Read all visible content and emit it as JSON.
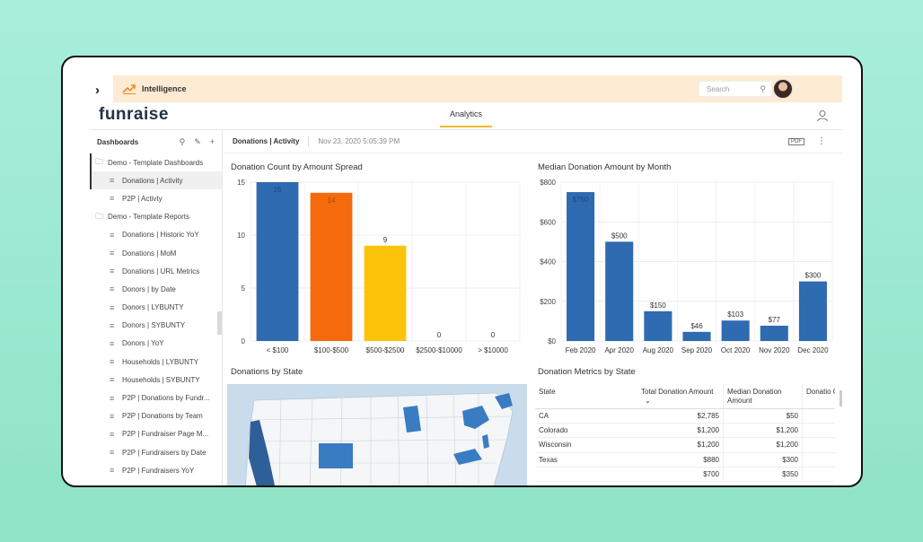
{
  "topbar": {
    "app_name": "Intelligence",
    "search_placeholder": "Search"
  },
  "logo": "funraise",
  "nav": {
    "tab": "Analytics"
  },
  "sidebar": {
    "title": "Dashboards",
    "items": [
      {
        "label": "Demo - Template Dashboards",
        "type": "folder"
      },
      {
        "label": "Donations | Activity",
        "type": "leaf",
        "active": true
      },
      {
        "label": "P2P | Activty",
        "type": "leaf"
      },
      {
        "label": "Demo - Template Reports",
        "type": "folder"
      },
      {
        "label": "Donations | Historic YoY",
        "type": "leaf"
      },
      {
        "label": "Donations | MoM",
        "type": "leaf"
      },
      {
        "label": "Donations | URL Metrics",
        "type": "leaf"
      },
      {
        "label": "Donors | by Date",
        "type": "leaf"
      },
      {
        "label": "Donors | LYBUNTY",
        "type": "leaf"
      },
      {
        "label": "Donors | SYBUNTY",
        "type": "leaf"
      },
      {
        "label": "Donors | YoY",
        "type": "leaf"
      },
      {
        "label": "Households | LYBUNTY",
        "type": "leaf"
      },
      {
        "label": "Households | SYBUNTY",
        "type": "leaf"
      },
      {
        "label": "P2P | Donations by Fundr...",
        "type": "leaf"
      },
      {
        "label": "P2P | Donations by Team",
        "type": "leaf"
      },
      {
        "label": "P2P | Fundraiser Page M...",
        "type": "leaf"
      },
      {
        "label": "P2P | Fundraisers by Date",
        "type": "leaf"
      },
      {
        "label": "P2P | Fundraisers YoY",
        "type": "leaf"
      }
    ]
  },
  "content": {
    "title": "Donations | Activity",
    "timestamp": "Nov 23, 2020 5:05:39 PM",
    "pdf_label": "PDF"
  },
  "widgets": {
    "map_title": "Donations by State",
    "table_title": "Donation Metrics by State"
  },
  "chart_data": [
    {
      "type": "bar",
      "title": "Donation Count by Amount Spread",
      "categories": [
        "< $100",
        "$100-$500",
        "$500-$2500",
        "$2500-$10000",
        "> $10000"
      ],
      "values": [
        15,
        14,
        9,
        0,
        0
      ],
      "value_labels": [
        "15",
        "14",
        "9",
        "0",
        "0"
      ],
      "colors": [
        "#2e6bb0",
        "#f56a0c",
        "#fcc30b",
        "#2e6bb0",
        "#2e6bb0"
      ],
      "ylim": [
        0,
        15
      ],
      "yticks": [
        "0",
        "5",
        "10",
        "15"
      ],
      "grid": true
    },
    {
      "type": "bar",
      "title": "Median Donation Amount by Month",
      "categories": [
        "Feb 2020",
        "Apr 2020",
        "Aug 2020",
        "Sep 2020",
        "Oct 2020",
        "Nov 2020",
        "Dec 2020"
      ],
      "values": [
        750,
        500,
        150,
        46,
        103,
        77,
        300
      ],
      "value_labels": [
        "$750",
        "$500",
        "$150",
        "$46",
        "$103",
        "$77",
        "$300"
      ],
      "colors": [
        "#2e6bb0"
      ],
      "ylim": [
        0,
        800
      ],
      "yticks": [
        "$0",
        "$200",
        "$400",
        "$600",
        "$800"
      ],
      "grid": true
    }
  ],
  "table": {
    "headers": [
      "State",
      "Total Donation Amount",
      "Median Donation Amount",
      "Donatio Count"
    ],
    "rows": [
      [
        "CA",
        "$2,785",
        "$50",
        ""
      ],
      [
        "Colorado",
        "$1,200",
        "$1,200",
        ""
      ],
      [
        "Wisconsin",
        "$1,200",
        "$1,200",
        ""
      ],
      [
        "Texas",
        "$880",
        "$300",
        ""
      ],
      [
        "",
        "$700",
        "$350",
        ""
      ]
    ]
  },
  "colors": {
    "accent": "#f5b72c",
    "bar_blue": "#2e6bb0",
    "bar_orange": "#f56a0c",
    "bar_yellow": "#fcc30b",
    "topbar_bg": "#fdecd3"
  }
}
